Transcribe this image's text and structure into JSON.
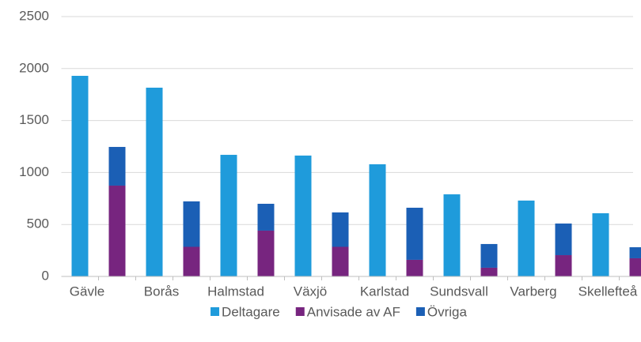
{
  "chart_data": {
    "type": "bar",
    "stacked": true,
    "categories": [
      "Gävle",
      null,
      "Borås",
      null,
      "Halmstad",
      null,
      "Växjö",
      null,
      "Karlstad",
      null,
      "Sundsvall",
      null,
      "Varberg",
      null,
      "Skellefteå",
      null
    ],
    "series": [
      {
        "name": "Deltagare",
        "color": "#1f9bdb",
        "values": [
          1930,
          null,
          1816,
          null,
          1170,
          null,
          1163,
          null,
          1079,
          null,
          790,
          null,
          730,
          null,
          608,
          null
        ]
      },
      {
        "name": "Anvisade av AF",
        "color": "#77257f",
        "values": [
          null,
          874,
          null,
          285,
          null,
          441,
          null,
          285,
          null,
          160,
          null,
          84,
          null,
          205,
          null,
          175
        ]
      },
      {
        "name": "Övriga",
        "color": "#1b5fb5",
        "values": [
          null,
          372,
          null,
          437,
          null,
          258,
          null,
          331,
          null,
          501,
          null,
          228,
          null,
          304,
          null,
          106
        ]
      }
    ],
    "ylim": [
      0,
      2500
    ],
    "yticks": [
      0,
      500,
      1000,
      1500,
      2000,
      2500
    ],
    "grid": true,
    "legend": "bottom"
  }
}
